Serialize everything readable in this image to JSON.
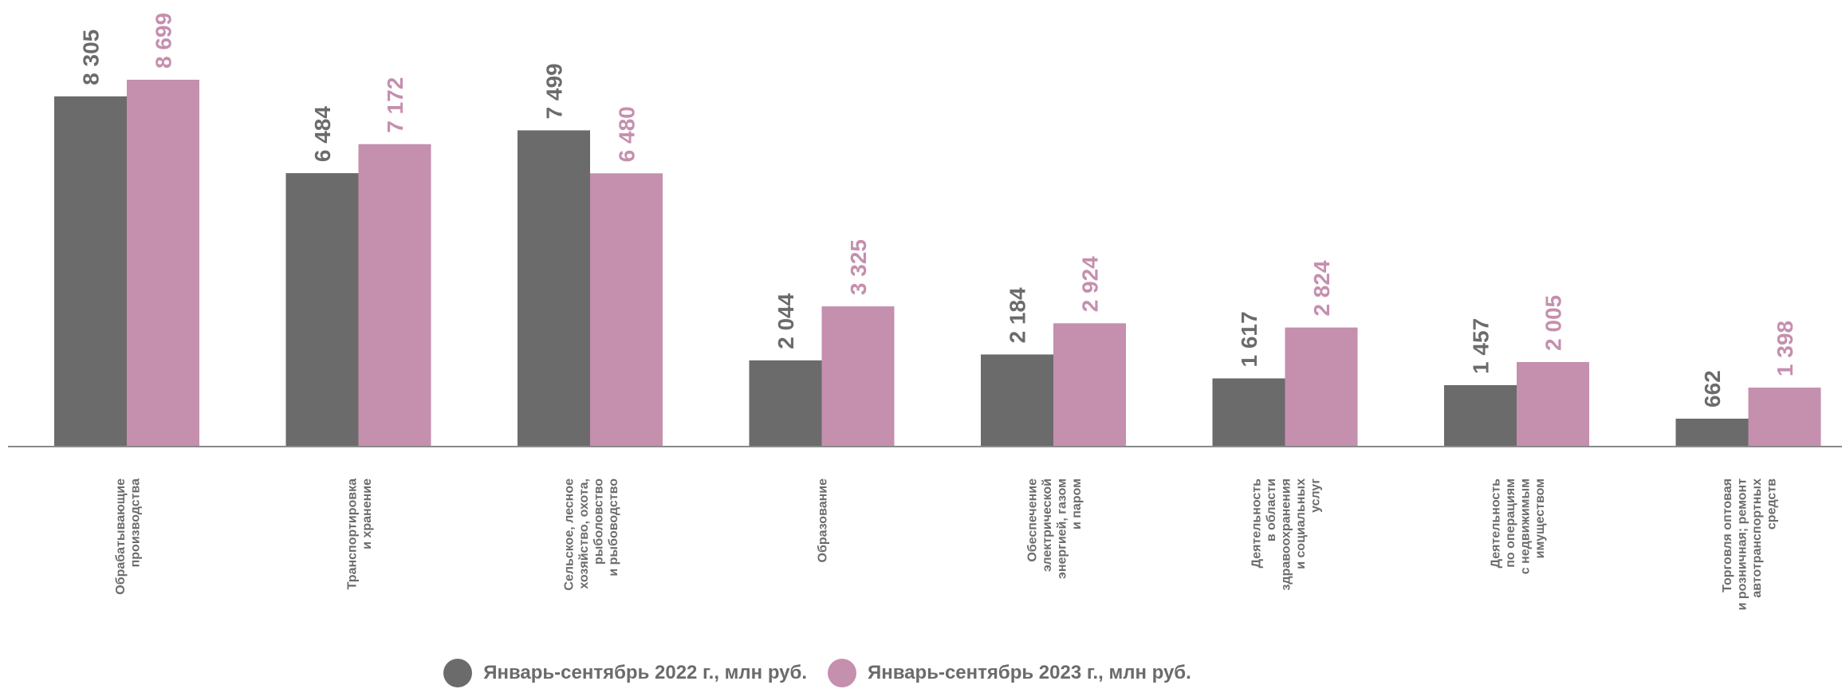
{
  "colors": {
    "series_2022": "#6b6b6b",
    "series_2023": "#c58fae",
    "axis": "#8a8a8a",
    "category_text": "#6b6b6b"
  },
  "legend": {
    "items": [
      {
        "label": "Январь-сентябрь 2022 г., млн руб.",
        "color": "#6b6b6b"
      },
      {
        "label": "Январь-сентябрь 2023 г., млн руб.",
        "color": "#c58fae"
      }
    ]
  },
  "chart_data": {
    "type": "bar",
    "orientation": "vertical",
    "categories": [
      [
        "Обрабатывающие",
        "производства"
      ],
      [
        "Транспортировка",
        "и хранение"
      ],
      [
        "Сельское, лесное",
        "хозяйство, охота,",
        "рыболовство",
        "и рыбоводство"
      ],
      [
        "Образование"
      ],
      [
        "Обеспечение",
        "электрической",
        "энергией, газом",
        "и паром"
      ],
      [
        "Деятельность",
        "в области",
        "здравоохранения",
        "и социальных",
        "услуг"
      ],
      [
        "Деятельность",
        "по операциям",
        "с недвижимым",
        "имуществом"
      ],
      [
        "Торговля оптовая",
        "и розничная; ремонт",
        "автотранспортных",
        "средств"
      ]
    ],
    "series": [
      {
        "name": "Январь-сентябрь 2022 г., млн руб.",
        "values": [
          8305,
          6484,
          7499,
          2044,
          2184,
          1617,
          1457,
          662
        ],
        "labels": [
          "8 305",
          "6 484",
          "7 499",
          "2 044",
          "2 184",
          "1 617",
          "1 457",
          "662"
        ]
      },
      {
        "name": "Январь-сентябрь 2023 г., млн руб.",
        "values": [
          8699,
          7172,
          6480,
          3325,
          2924,
          2824,
          2005,
          1398
        ],
        "labels": [
          "8 699",
          "7 172",
          "6 480",
          "3 325",
          "2 924",
          "2 824",
          "2 005",
          "1 398"
        ]
      }
    ],
    "ylim": [
      0,
      8699
    ],
    "grid": false,
    "legend_position": "bottom-center",
    "title": "",
    "xlabel": "",
    "ylabel": ""
  }
}
